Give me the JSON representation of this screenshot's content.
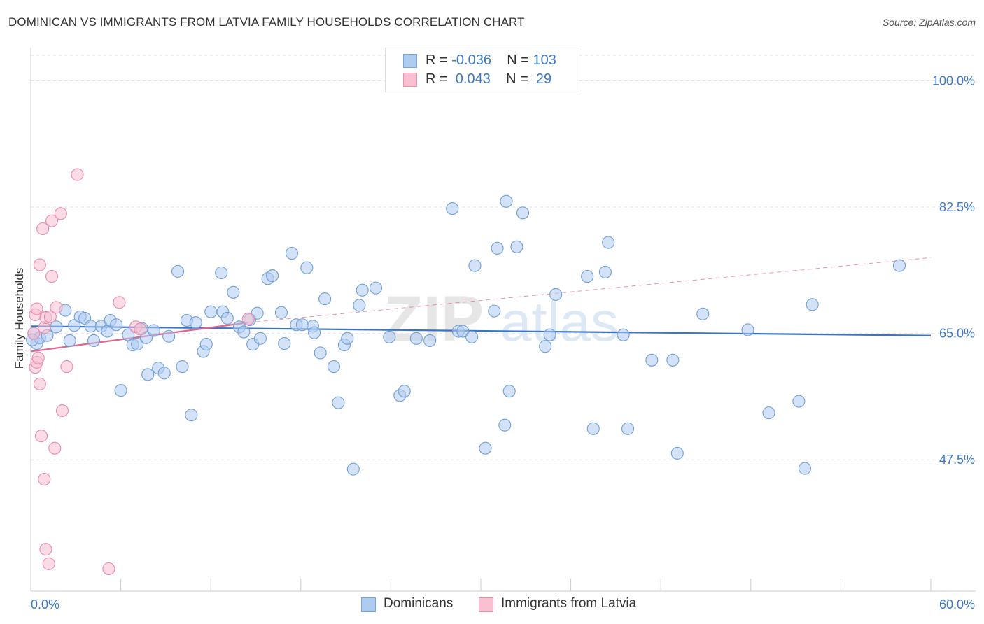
{
  "title": "DOMINICAN VS IMMIGRANTS FROM LATVIA FAMILY HOUSEHOLDS CORRELATION CHART",
  "source": "Source: ZipAtlas.com",
  "watermark": {
    "zip": "ZIP",
    "atlas": "atlas"
  },
  "legend": {
    "rows": [
      {
        "r_label": "R = ",
        "r_value": "-0.036",
        "n_label": "N = ",
        "n_value": "103",
        "color": "#aecbf0",
        "border": "#7aa6dd"
      },
      {
        "r_label": "R = ",
        "r_value": " 0.043",
        "n_label": "N = ",
        "n_value": " 29",
        "color": "#f8c0d1",
        "border": "#e893ae"
      }
    ]
  },
  "bottom_legend": [
    {
      "label": "Dominicans",
      "color": "#aecbf0",
      "border": "#7aa6dd"
    },
    {
      "label": "Immigrants from Latvia",
      "color": "#f8c0d1",
      "border": "#e893ae"
    }
  ],
  "chart_data": {
    "type": "scatter",
    "ylabel": "Family Households",
    "xlabel": "",
    "xlim": [
      0,
      60
    ],
    "ylim": [
      29.3,
      104.6
    ],
    "x_tick_labels": [
      {
        "value": 0,
        "label": "0.0%"
      },
      {
        "value": 60,
        "label": "60.0%"
      }
    ],
    "y_tick_labels": [
      {
        "value": 100,
        "label": "100.0%"
      },
      {
        "value": 82.5,
        "label": "82.5%"
      },
      {
        "value": 65,
        "label": "65.0%"
      },
      {
        "value": 47.5,
        "label": "47.5%"
      }
    ],
    "series": [
      {
        "name": "Dominicans",
        "color": "#aecbf0",
        "stroke": "#6f9fd8",
        "trend": {
          "x": [
            0,
            60
          ],
          "y": [
            66.0,
            64.7
          ],
          "color": "#3a74c8",
          "style": "solid"
        },
        "points": [
          [
            0.2,
            65.0
          ],
          [
            0.4,
            63.6
          ],
          [
            0.6,
            64.4
          ],
          [
            1.1,
            64.7
          ],
          [
            1.7,
            65.9
          ],
          [
            2.3,
            68.2
          ],
          [
            2.6,
            64.0
          ],
          [
            2.9,
            66.1
          ],
          [
            3.3,
            67.3
          ],
          [
            3.6,
            67.1
          ],
          [
            4.0,
            66.0
          ],
          [
            4.2,
            64.0
          ],
          [
            4.7,
            66.0
          ],
          [
            5.1,
            65.3
          ],
          [
            5.3,
            66.8
          ],
          [
            5.7,
            66.2
          ],
          [
            6.0,
            57.1
          ],
          [
            6.5,
            64.8
          ],
          [
            6.8,
            63.4
          ],
          [
            7.1,
            63.5
          ],
          [
            7.4,
            65.7
          ],
          [
            7.7,
            64.4
          ],
          [
            7.8,
            59.3
          ],
          [
            8.2,
            65.4
          ],
          [
            8.5,
            60.2
          ],
          [
            8.9,
            59.5
          ],
          [
            9.2,
            64.6
          ],
          [
            9.8,
            73.6
          ],
          [
            10.1,
            60.4
          ],
          [
            10.4,
            66.8
          ],
          [
            10.7,
            53.7
          ],
          [
            11.0,
            66.5
          ],
          [
            11.5,
            62.5
          ],
          [
            11.7,
            63.5
          ],
          [
            12.0,
            68.0
          ],
          [
            12.7,
            73.4
          ],
          [
            12.8,
            68.0
          ],
          [
            13.1,
            67.1
          ],
          [
            13.5,
            70.7
          ],
          [
            13.9,
            65.9
          ],
          [
            14.2,
            65.2
          ],
          [
            14.6,
            66.9
          ],
          [
            14.8,
            63.5
          ],
          [
            15.1,
            67.8
          ],
          [
            15.3,
            64.3
          ],
          [
            15.8,
            72.6
          ],
          [
            16.1,
            73.0
          ],
          [
            16.7,
            67.9
          ],
          [
            16.9,
            63.6
          ],
          [
            17.4,
            76.1
          ],
          [
            17.7,
            66.2
          ],
          [
            18.1,
            66.2
          ],
          [
            18.4,
            74.1
          ],
          [
            18.8,
            66.0
          ],
          [
            18.9,
            65.1
          ],
          [
            19.3,
            62.3
          ],
          [
            19.6,
            69.8
          ],
          [
            20.2,
            60.4
          ],
          [
            20.5,
            55.4
          ],
          [
            20.9,
            63.4
          ],
          [
            21.1,
            64.3
          ],
          [
            21.5,
            46.2
          ],
          [
            21.9,
            68.9
          ],
          [
            22.1,
            71.0
          ],
          [
            23.0,
            71.3
          ],
          [
            23.9,
            64.5
          ],
          [
            24.6,
            56.4
          ],
          [
            24.9,
            57.0
          ],
          [
            25.7,
            64.3
          ],
          [
            26.6,
            64.0
          ],
          [
            28.1,
            82.3
          ],
          [
            28.5,
            65.3
          ],
          [
            28.8,
            65.3
          ],
          [
            29.4,
            64.5
          ],
          [
            29.6,
            74.4
          ],
          [
            30.3,
            49.1
          ],
          [
            30.9,
            68.1
          ],
          [
            31.1,
            76.8
          ],
          [
            31.6,
            52.3
          ],
          [
            31.7,
            83.3
          ],
          [
            31.9,
            57.0
          ],
          [
            32.4,
            77.0
          ],
          [
            32.8,
            81.7
          ],
          [
            34.3,
            63.2
          ],
          [
            34.6,
            64.8
          ],
          [
            35.0,
            70.4
          ],
          [
            37.1,
            72.9
          ],
          [
            37.5,
            51.8
          ],
          [
            38.3,
            73.5
          ],
          [
            38.5,
            77.6
          ],
          [
            39.5,
            64.8
          ],
          [
            39.8,
            51.8
          ],
          [
            41.4,
            61.3
          ],
          [
            43.1,
            48.4
          ],
          [
            42.8,
            61.3
          ],
          [
            44.8,
            67.7
          ],
          [
            47.8,
            65.5
          ],
          [
            49.2,
            54.0
          ],
          [
            51.2,
            55.6
          ],
          [
            51.6,
            46.3
          ],
          [
            52.1,
            69.0
          ],
          [
            57.9,
            74.4
          ],
          [
            0.1,
            64.1
          ]
        ]
      },
      {
        "name": "Immigrants from Latvia",
        "color": "#f8c0d1",
        "stroke": "#e88aaa",
        "trend": {
          "x": [
            0,
            14.5
          ],
          "y": [
            62.5,
            66.5
          ],
          "x_ext": [
            14.5,
            60
          ],
          "y_ext": [
            66.5,
            75.5
          ],
          "color": "#e0668e",
          "style": "solid"
        },
        "points": [
          [
            0.2,
            65.0
          ],
          [
            0.3,
            67.6
          ],
          [
            0.3,
            60.3
          ],
          [
            0.4,
            61.0
          ],
          [
            0.4,
            68.4
          ],
          [
            0.5,
            61.6
          ],
          [
            0.6,
            58.0
          ],
          [
            0.6,
            74.5
          ],
          [
            0.7,
            50.8
          ],
          [
            0.8,
            79.5
          ],
          [
            0.9,
            65.8
          ],
          [
            0.9,
            44.8
          ],
          [
            1.0,
            35.1
          ],
          [
            1.0,
            67.2
          ],
          [
            1.2,
            33.1
          ],
          [
            1.3,
            67.3
          ],
          [
            1.4,
            80.6
          ],
          [
            1.4,
            72.9
          ],
          [
            1.6,
            49.1
          ],
          [
            1.7,
            68.6
          ],
          [
            2.0,
            81.6
          ],
          [
            2.1,
            54.3
          ],
          [
            2.4,
            60.4
          ],
          [
            3.1,
            87.0
          ],
          [
            5.2,
            32.4
          ],
          [
            5.9,
            69.3
          ],
          [
            7.0,
            65.9
          ],
          [
            7.3,
            65.6
          ],
          [
            14.5,
            67.0
          ]
        ]
      }
    ]
  }
}
